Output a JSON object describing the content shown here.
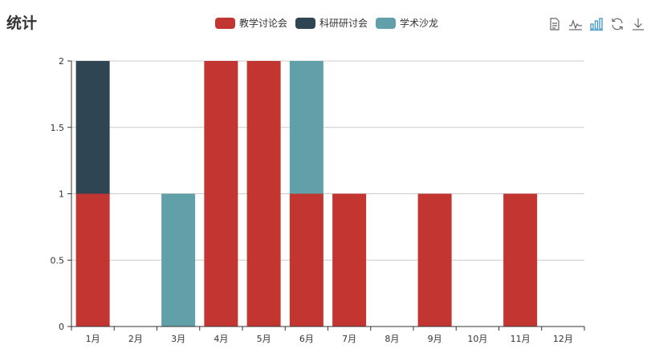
{
  "title": "统计",
  "legend": [
    {
      "name": "教学讨论会",
      "color": "#c23531"
    },
    {
      "name": "科研研讨会",
      "color": "#2f4554"
    },
    {
      "name": "学术沙龙",
      "color": "#61a0a8"
    }
  ],
  "toolbox": [
    {
      "icon": "data-view-icon"
    },
    {
      "icon": "line-chart-icon"
    },
    {
      "icon": "bar-chart-icon"
    },
    {
      "icon": "restore-icon"
    },
    {
      "icon": "download-icon"
    }
  ],
  "chart_data": {
    "type": "bar",
    "stacked": true,
    "categories": [
      "1月",
      "2月",
      "3月",
      "4月",
      "5月",
      "6月",
      "7月",
      "8月",
      "9月",
      "10月",
      "11月",
      "12月"
    ],
    "series": [
      {
        "name": "教学讨论会",
        "color": "#c23531",
        "values": [
          1,
          0,
          0,
          2,
          2,
          1,
          1,
          0,
          1,
          0,
          1,
          0
        ]
      },
      {
        "name": "科研研讨会",
        "color": "#2f4554",
        "values": [
          1,
          0,
          0,
          0,
          0,
          0,
          0,
          0,
          0,
          0,
          0,
          0
        ]
      },
      {
        "name": "学术沙龙",
        "color": "#61a0a8",
        "values": [
          0,
          0,
          1,
          0,
          0,
          1,
          0,
          0,
          0,
          0,
          0,
          0
        ]
      }
    ],
    "ylim": [
      0,
      2
    ],
    "yticks": [
      0,
      0.5,
      1,
      1.5,
      2
    ],
    "ytick_labels": [
      "0",
      "0.5",
      "1",
      "1.5",
      "2"
    ],
    "grid": true
  }
}
